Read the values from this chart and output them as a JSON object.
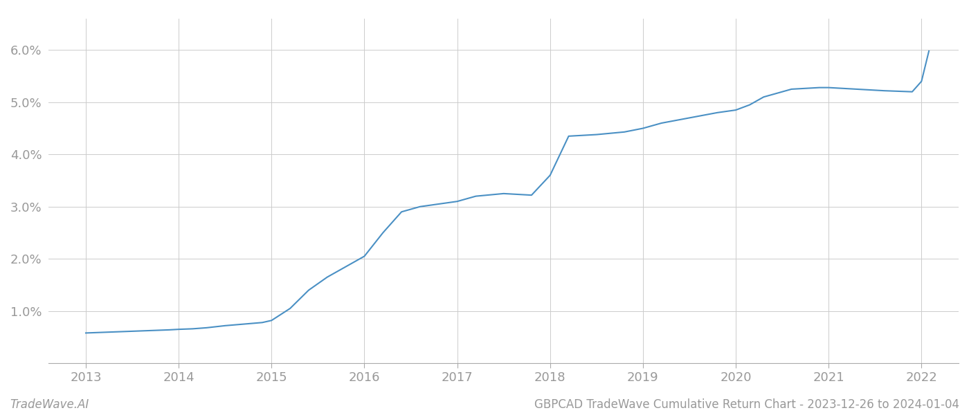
{
  "title": "",
  "footer_left": "TradeWave.AI",
  "footer_right": "GBPCAD TradeWave Cumulative Return Chart - 2023-12-26 to 2024-01-04",
  "line_color": "#4a90c4",
  "background_color": "#ffffff",
  "grid_color": "#cccccc",
  "text_color": "#999999",
  "x_values": [
    2013.0,
    2013.3,
    2013.6,
    2013.9,
    2014.0,
    2014.15,
    2014.3,
    2014.5,
    2014.7,
    2014.9,
    2015.0,
    2015.2,
    2015.4,
    2015.6,
    2015.8,
    2016.0,
    2016.2,
    2016.4,
    2016.6,
    2016.8,
    2017.0,
    2017.2,
    2017.5,
    2017.8,
    2018.0,
    2018.2,
    2018.5,
    2018.8,
    2019.0,
    2019.2,
    2019.5,
    2019.8,
    2020.0,
    2020.15,
    2020.3,
    2020.6,
    2020.9,
    2021.0,
    2021.3,
    2021.6,
    2021.9,
    2022.0,
    2022.08
  ],
  "y_values": [
    0.58,
    0.6,
    0.62,
    0.64,
    0.65,
    0.66,
    0.68,
    0.72,
    0.75,
    0.78,
    0.82,
    1.05,
    1.4,
    1.65,
    1.85,
    2.05,
    2.5,
    2.9,
    3.0,
    3.05,
    3.1,
    3.2,
    3.25,
    3.22,
    3.6,
    4.35,
    4.38,
    4.43,
    4.5,
    4.6,
    4.7,
    4.8,
    4.85,
    4.95,
    5.1,
    5.25,
    5.28,
    5.28,
    5.25,
    5.22,
    5.2,
    5.4,
    5.98
  ],
  "ylim": [
    0.0,
    6.6
  ],
  "xlim": [
    2012.6,
    2022.4
  ],
  "yticks": [
    1.0,
    2.0,
    3.0,
    4.0,
    5.0,
    6.0
  ],
  "xticks": [
    2013,
    2014,
    2015,
    2016,
    2017,
    2018,
    2019,
    2020,
    2021,
    2022
  ]
}
